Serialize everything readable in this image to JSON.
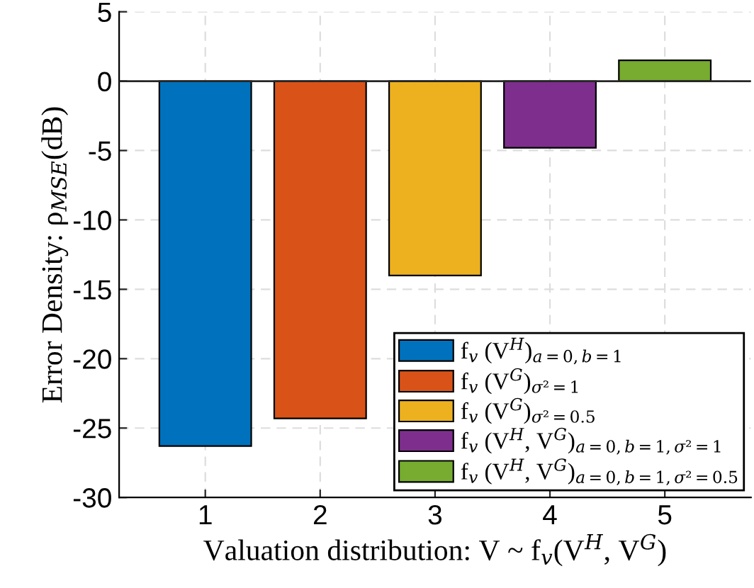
{
  "chart_data": {
    "type": "bar",
    "xlabel": "Valuation distribution: V ~ f$_{v}$(V$^{H}$, V$^{G}$)",
    "ylabel": "Error Density: ρ$_{MSE}$(dB)",
    "categories": [
      "1",
      "2",
      "3",
      "4",
      "5"
    ],
    "series": [
      {
        "name": "f$_{v}$ (V$^{H}$)$_{a=0,b=1}$",
        "color": "#0072bd",
        "values": [
          -26.3,
          null,
          null,
          null,
          null
        ]
      },
      {
        "name": "f$_{v}$ (V$^{G}$)$_{σ²=1}$",
        "color": "#d95319",
        "values": [
          null,
          -24.3,
          null,
          null,
          null
        ]
      },
      {
        "name": "f$_{v}$ (V$^{G}$)$_{σ²=0.5}$",
        "color": "#edb120",
        "values": [
          null,
          null,
          -14.0,
          null,
          null
        ]
      },
      {
        "name": "f$_{v}$ (V$^{H}$, V$^{G}$)$_{a=0,b=1,σ²=1}$",
        "color": "#7e2f8e",
        "values": [
          null,
          null,
          null,
          -4.8,
          null
        ]
      },
      {
        "name": "f$_{v}$ (V$^{H}$, V$^{G}$)$_{a=0,b=1,σ²=0.5}$",
        "color": "#77ac30",
        "values": [
          null,
          null,
          null,
          null,
          1.5
        ]
      }
    ],
    "ylim": [
      -30,
      5
    ],
    "yticks": [
      -30,
      -25,
      -20,
      -15,
      -10,
      -5,
      0,
      5
    ],
    "ref_lines": [
      {
        "axis": "y",
        "value": 0,
        "color": "#262626"
      }
    ],
    "grid": true,
    "legend": "bottom right"
  }
}
